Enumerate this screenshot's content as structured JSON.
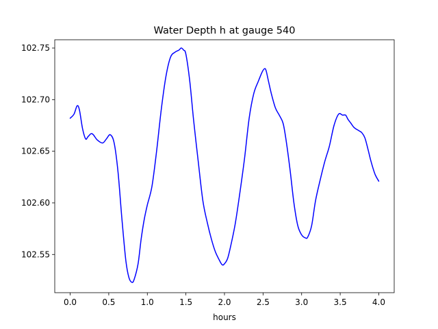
{
  "chart_data": {
    "type": "line",
    "title": "Water Depth h at gauge 540",
    "xlabel": "hours",
    "ylabel": "",
    "xlim": [
      -0.2,
      4.2
    ],
    "ylim": [
      102.513,
      102.758
    ],
    "grid": false,
    "colors": {
      "line": "#0000ff",
      "axes": "#000000",
      "background": "#ffffff"
    },
    "x_ticks": [
      0.0,
      0.5,
      1.0,
      1.5,
      2.0,
      2.5,
      3.0,
      3.5,
      4.0
    ],
    "x_tick_labels": [
      "0.0",
      "0.5",
      "1.0",
      "1.5",
      "2.0",
      "2.5",
      "3.0",
      "3.5",
      "4.0"
    ],
    "y_ticks": [
      102.55,
      102.6,
      102.65,
      102.7,
      102.75
    ],
    "y_tick_labels": [
      "102.55",
      "102.60",
      "102.65",
      "102.70",
      "102.75"
    ],
    "series": [
      {
        "x": [
          0.0,
          0.05,
          0.09,
          0.12,
          0.16,
          0.2,
          0.23,
          0.27,
          0.3,
          0.35,
          0.42,
          0.47,
          0.52,
          0.57,
          0.62,
          0.67,
          0.72,
          0.76,
          0.8,
          0.83,
          0.88,
          0.92,
          0.96,
          1.0,
          1.06,
          1.12,
          1.18,
          1.24,
          1.3,
          1.36,
          1.41,
          1.44,
          1.47,
          1.5,
          1.55,
          1.6,
          1.66,
          1.72,
          1.78,
          1.83,
          1.88,
          1.93,
          1.97,
          2.0,
          2.04,
          2.08,
          2.14,
          2.2,
          2.26,
          2.32,
          2.38,
          2.44,
          2.49,
          2.52,
          2.54,
          2.57,
          2.61,
          2.66,
          2.71,
          2.76,
          2.8,
          2.85,
          2.9,
          2.95,
          3.0,
          3.05,
          3.08,
          3.13,
          3.18,
          3.24,
          3.3,
          3.36,
          3.42,
          3.48,
          3.53,
          3.57,
          3.6,
          3.64,
          3.68,
          3.74,
          3.78,
          3.82,
          3.86,
          3.9,
          3.95,
          4.0
        ],
        "y": [
          102.682,
          102.686,
          102.694,
          102.69,
          102.672,
          102.662,
          102.664,
          102.667,
          102.666,
          102.661,
          102.658,
          102.662,
          102.666,
          102.658,
          102.63,
          102.585,
          102.545,
          102.528,
          102.523,
          102.526,
          102.541,
          102.565,
          102.584,
          102.598,
          102.616,
          102.65,
          102.69,
          102.722,
          102.741,
          102.746,
          102.748,
          102.75,
          102.748,
          102.744,
          102.718,
          102.68,
          102.64,
          102.602,
          102.58,
          102.565,
          102.553,
          102.545,
          102.54,
          102.541,
          102.546,
          102.558,
          102.58,
          102.61,
          102.643,
          102.682,
          102.706,
          102.718,
          102.727,
          102.73,
          102.728,
          102.718,
          102.705,
          102.692,
          102.685,
          102.677,
          102.66,
          102.632,
          102.6,
          102.578,
          102.569,
          102.566,
          102.567,
          102.578,
          102.602,
          102.622,
          102.64,
          102.655,
          102.675,
          102.686,
          102.685,
          102.685,
          102.681,
          102.677,
          102.673,
          102.67,
          102.668,
          102.663,
          102.652,
          102.64,
          102.628,
          102.621
        ]
      }
    ]
  }
}
